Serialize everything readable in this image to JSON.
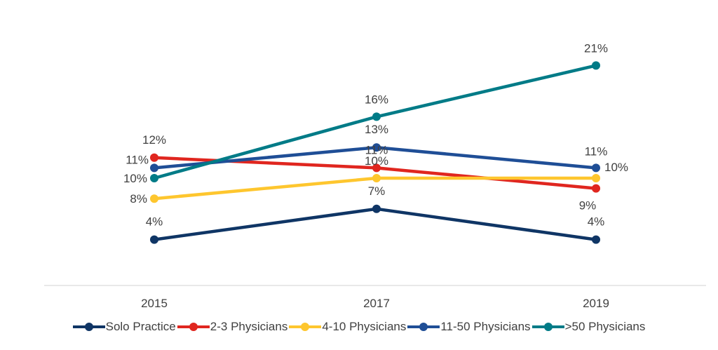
{
  "chart_data": {
    "type": "line",
    "categories": [
      "2015",
      "2017",
      "2019"
    ],
    "series": [
      {
        "name": "Solo Practice",
        "color": "#0f3565",
        "values": [
          4,
          7,
          4
        ],
        "labels": [
          "4%",
          "7%",
          "4%"
        ]
      },
      {
        "name": "2-3 Physicians",
        "color": "#e0261f",
        "values": [
          12,
          11,
          9
        ],
        "labels": [
          "12%",
          "11%",
          "9%"
        ]
      },
      {
        "name": "4-10 Physicians",
        "color": "#fec62e",
        "values": [
          8,
          10,
          10
        ],
        "labels": [
          "8%",
          "10%",
          "10%"
        ]
      },
      {
        "name": "11-50 Physicians",
        "color": "#1f4e96",
        "values": [
          11,
          13,
          11
        ],
        "labels": [
          "11%",
          "13%",
          "11%"
        ]
      },
      {
        "name": ">50 Physicians",
        "color": "#007b87",
        "values": [
          10,
          16,
          21
        ],
        "labels": [
          "10%",
          "16%",
          "21%"
        ]
      }
    ],
    "legend": "bottom",
    "grid": false
  }
}
